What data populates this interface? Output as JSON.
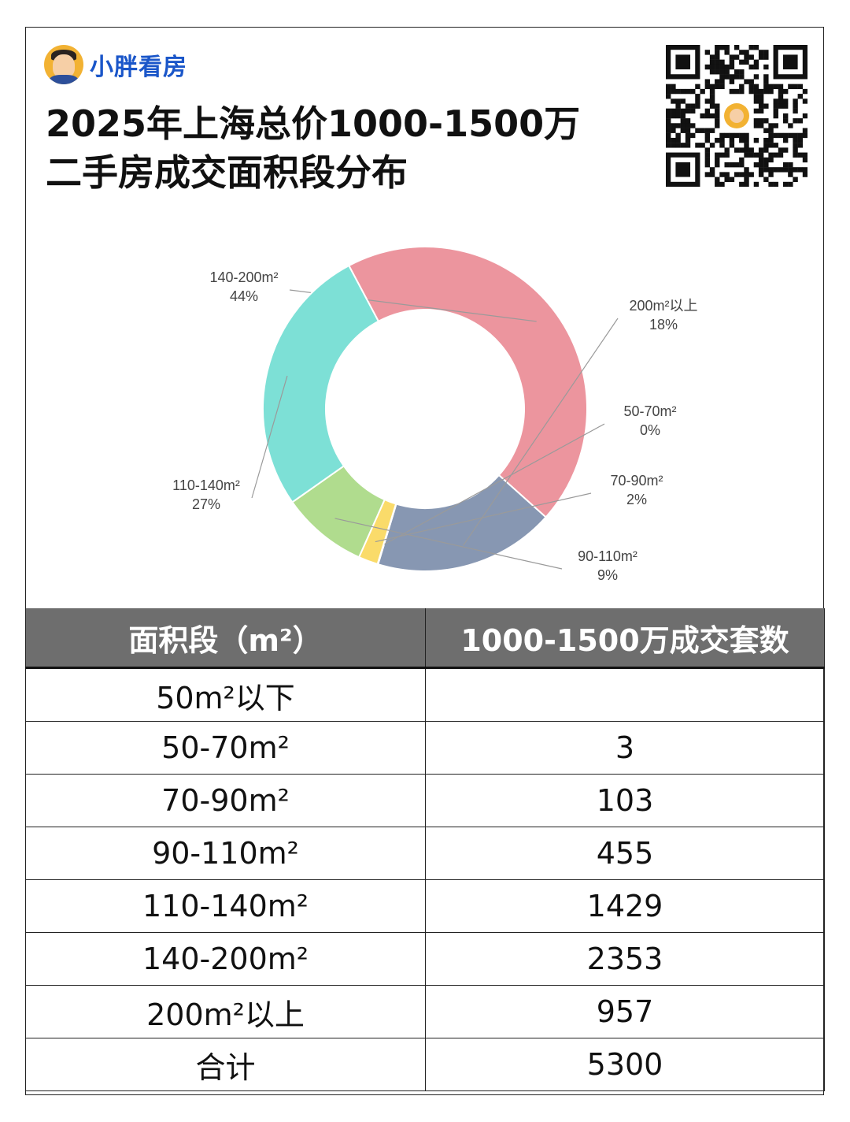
{
  "brand": {
    "name": "小胖看房"
  },
  "title": {
    "line1": "2025年上海总价1000-1500万",
    "line2": "二手房成交面积段分布"
  },
  "colors": {
    "s140_200": "#ec959e",
    "s200_plus": "#8797b2",
    "s50_70": "#c7d9f3",
    "s70_90": "#fadb6a",
    "s90_110": "#b0dc8e",
    "s110_140": "#7de0d6",
    "header_bg": "#6e6e6e"
  },
  "chart_data": {
    "type": "pie",
    "donut": true,
    "title": "",
    "slices": [
      {
        "label": "140-200m²",
        "pct_label": "44%",
        "value": 2353,
        "color": "#ec959e"
      },
      {
        "label": "200m²以上",
        "pct_label": "18%",
        "value": 957,
        "color": "#8797b2"
      },
      {
        "label": "50-70m²",
        "pct_label": "0%",
        "value": 3,
        "color": "#c7d9f3"
      },
      {
        "label": "70-90m²",
        "pct_label": "2%",
        "value": 103,
        "color": "#fadb6a"
      },
      {
        "label": "90-110m²",
        "pct_label": "9%",
        "value": 455,
        "color": "#b0dc8e"
      },
      {
        "label": "110-140m²",
        "pct_label": "27%",
        "value": 1429,
        "color": "#7de0d6"
      }
    ]
  },
  "table": {
    "headers": [
      "面积段（m²）",
      "1000-1500万成交套数"
    ],
    "rows": [
      {
        "range": "50m²以下",
        "count": ""
      },
      {
        "range": "50-70m²",
        "count": "3"
      },
      {
        "range": "70-90m²",
        "count": "103"
      },
      {
        "range": "90-110m²",
        "count": "455"
      },
      {
        "range": "110-140m²",
        "count": "1429"
      },
      {
        "range": "140-200m²",
        "count": "2353"
      },
      {
        "range": "200m²以上",
        "count": "957"
      },
      {
        "range": "合计",
        "count": "5300"
      }
    ]
  }
}
